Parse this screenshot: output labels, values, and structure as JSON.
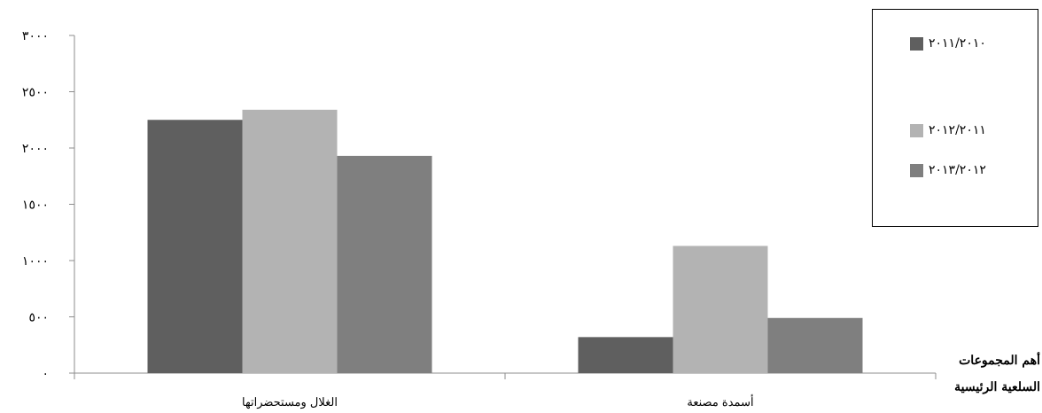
{
  "chart_data": {
    "type": "bar",
    "categories": [
      "الغلال ومستحضراتها",
      "أسمدة مصنعة"
    ],
    "series": [
      {
        "name": "٢٠١١/٢٠١٠",
        "values": [
          2250,
          320
        ],
        "color": "#5f5f5f"
      },
      {
        "name": "٢٠١٢/٢٠١١",
        "values": [
          2340,
          1130
        ],
        "color": "#b3b3b3"
      },
      {
        "name": "٢٠١٣/٢٠١٢",
        "values": [
          1930,
          490
        ],
        "color": "#7f7f7f"
      }
    ],
    "ylim": [
      0,
      3000
    ],
    "yticks": [
      0,
      500,
      1000,
      1500,
      2000,
      2500,
      3000
    ],
    "ytick_labels": [
      "٠",
      "٥٠٠",
      "١٠٠٠",
      "١٥٠٠",
      "٢٠٠٠",
      "٢٥٠٠",
      "٣٠٠٠"
    ],
    "xlabel_line1": "أهم المجموعات",
    "xlabel_line2": "السلعية الرئيسية",
    "legend_position": "top-right",
    "grid": false
  }
}
